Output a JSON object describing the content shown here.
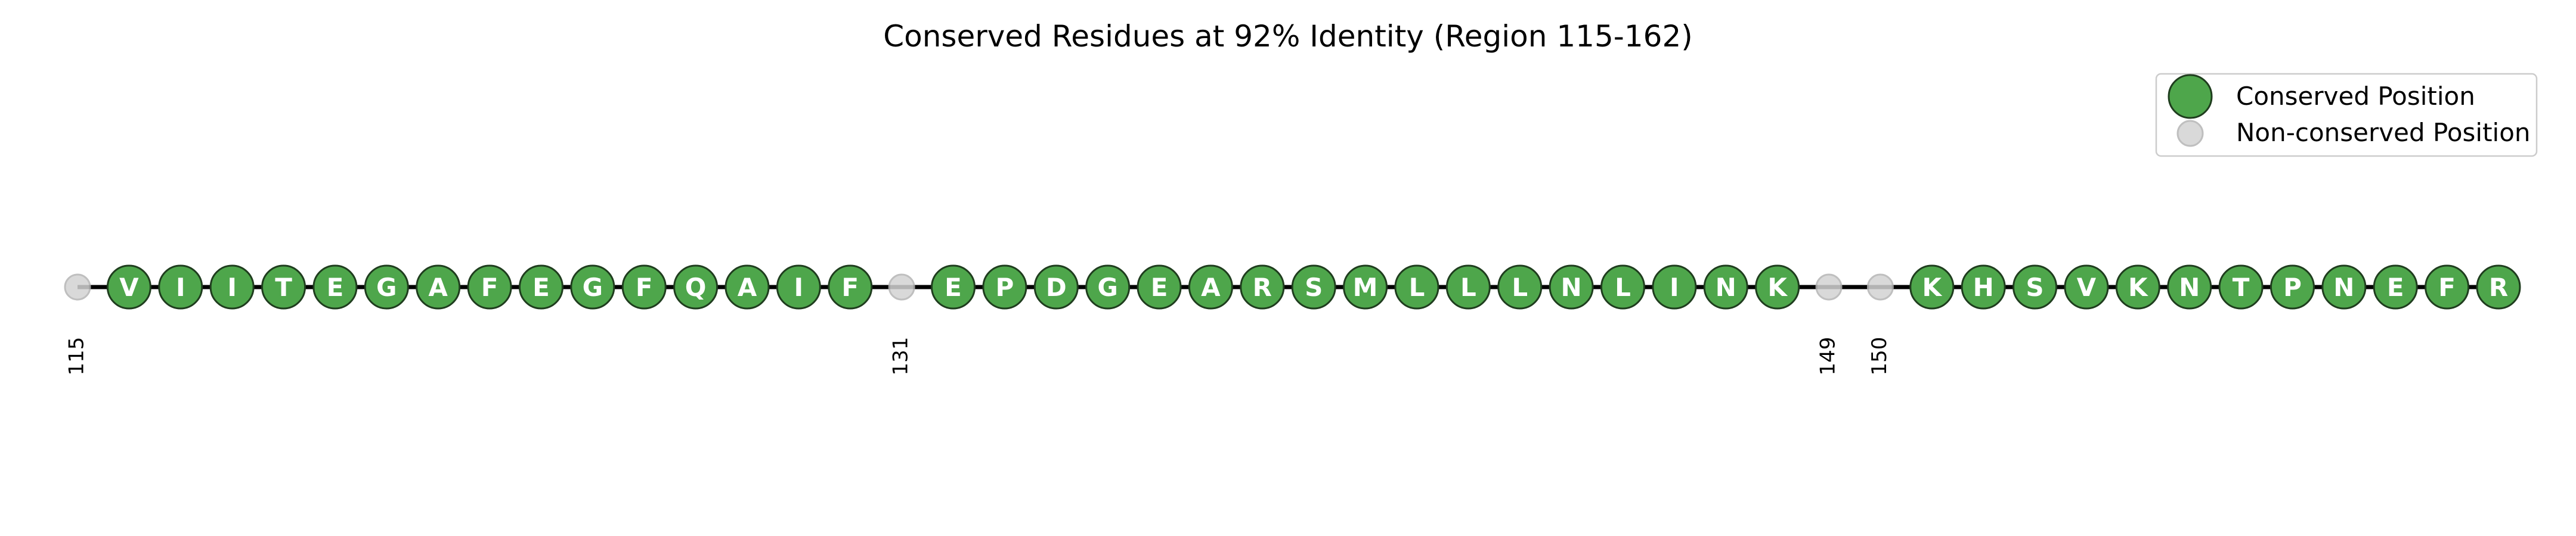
{
  "chart_data": {
    "type": "scatter",
    "title": "Conserved Residues at 92% Identity (Region 115-162)",
    "xlabel": "",
    "ylabel": "",
    "xlim": [
      115,
      162
    ],
    "grid": false,
    "legend_placement": "top-right",
    "legend": [
      {
        "label": "Conserved Position",
        "series": "conserved"
      },
      {
        "label": "Non-conserved Position",
        "series": "nonconserved"
      }
    ],
    "colors": {
      "conserved_fill": "#4ea64b",
      "conserved_edge": "#1f3d1e",
      "nonconserved_fill": "#d3d3d3",
      "nonconserved_edge": "#b5b5b5",
      "line": "#000000"
    },
    "positions": [
      {
        "pos": 115,
        "conserved": false,
        "residue": "",
        "label": "115"
      },
      {
        "pos": 116,
        "conserved": true,
        "residue": "V",
        "label": ""
      },
      {
        "pos": 117,
        "conserved": true,
        "residue": "I",
        "label": ""
      },
      {
        "pos": 118,
        "conserved": true,
        "residue": "I",
        "label": ""
      },
      {
        "pos": 119,
        "conserved": true,
        "residue": "T",
        "label": ""
      },
      {
        "pos": 120,
        "conserved": true,
        "residue": "E",
        "label": ""
      },
      {
        "pos": 121,
        "conserved": true,
        "residue": "G",
        "label": ""
      },
      {
        "pos": 122,
        "conserved": true,
        "residue": "A",
        "label": ""
      },
      {
        "pos": 123,
        "conserved": true,
        "residue": "F",
        "label": ""
      },
      {
        "pos": 124,
        "conserved": true,
        "residue": "E",
        "label": ""
      },
      {
        "pos": 125,
        "conserved": true,
        "residue": "G",
        "label": ""
      },
      {
        "pos": 126,
        "conserved": true,
        "residue": "F",
        "label": ""
      },
      {
        "pos": 127,
        "conserved": true,
        "residue": "Q",
        "label": ""
      },
      {
        "pos": 128,
        "conserved": true,
        "residue": "A",
        "label": ""
      },
      {
        "pos": 129,
        "conserved": true,
        "residue": "I",
        "label": ""
      },
      {
        "pos": 130,
        "conserved": true,
        "residue": "F",
        "label": ""
      },
      {
        "pos": 131,
        "conserved": false,
        "residue": "",
        "label": "131"
      },
      {
        "pos": 132,
        "conserved": true,
        "residue": "E",
        "label": ""
      },
      {
        "pos": 133,
        "conserved": true,
        "residue": "P",
        "label": ""
      },
      {
        "pos": 134,
        "conserved": true,
        "residue": "D",
        "label": ""
      },
      {
        "pos": 135,
        "conserved": true,
        "residue": "G",
        "label": ""
      },
      {
        "pos": 136,
        "conserved": true,
        "residue": "E",
        "label": ""
      },
      {
        "pos": 137,
        "conserved": true,
        "residue": "A",
        "label": ""
      },
      {
        "pos": 138,
        "conserved": true,
        "residue": "R",
        "label": ""
      },
      {
        "pos": 139,
        "conserved": true,
        "residue": "S",
        "label": ""
      },
      {
        "pos": 140,
        "conserved": true,
        "residue": "M",
        "label": ""
      },
      {
        "pos": 141,
        "conserved": true,
        "residue": "L",
        "label": ""
      },
      {
        "pos": 142,
        "conserved": true,
        "residue": "L",
        "label": ""
      },
      {
        "pos": 143,
        "conserved": true,
        "residue": "L",
        "label": ""
      },
      {
        "pos": 144,
        "conserved": true,
        "residue": "N",
        "label": ""
      },
      {
        "pos": 145,
        "conserved": true,
        "residue": "L",
        "label": ""
      },
      {
        "pos": 146,
        "conserved": true,
        "residue": "I",
        "label": ""
      },
      {
        "pos": 147,
        "conserved": true,
        "residue": "N",
        "label": ""
      },
      {
        "pos": 148,
        "conserved": true,
        "residue": "K",
        "label": ""
      },
      {
        "pos": 149,
        "conserved": false,
        "residue": "",
        "label": "149"
      },
      {
        "pos": 150,
        "conserved": false,
        "residue": "",
        "label": "150"
      },
      {
        "pos": 151,
        "conserved": true,
        "residue": "K",
        "label": ""
      },
      {
        "pos": 152,
        "conserved": true,
        "residue": "H",
        "label": ""
      },
      {
        "pos": 153,
        "conserved": true,
        "residue": "S",
        "label": ""
      },
      {
        "pos": 154,
        "conserved": true,
        "residue": "V",
        "label": ""
      },
      {
        "pos": 155,
        "conserved": true,
        "residue": "K",
        "label": ""
      },
      {
        "pos": 156,
        "conserved": true,
        "residue": "N",
        "label": ""
      },
      {
        "pos": 157,
        "conserved": true,
        "residue": "T",
        "label": ""
      },
      {
        "pos": 158,
        "conserved": true,
        "residue": "P",
        "label": ""
      },
      {
        "pos": 159,
        "conserved": true,
        "residue": "N",
        "label": ""
      },
      {
        "pos": 160,
        "conserved": true,
        "residue": "E",
        "label": ""
      },
      {
        "pos": 161,
        "conserved": true,
        "residue": "F",
        "label": ""
      },
      {
        "pos": 162,
        "conserved": true,
        "residue": "R",
        "label": ""
      }
    ]
  }
}
